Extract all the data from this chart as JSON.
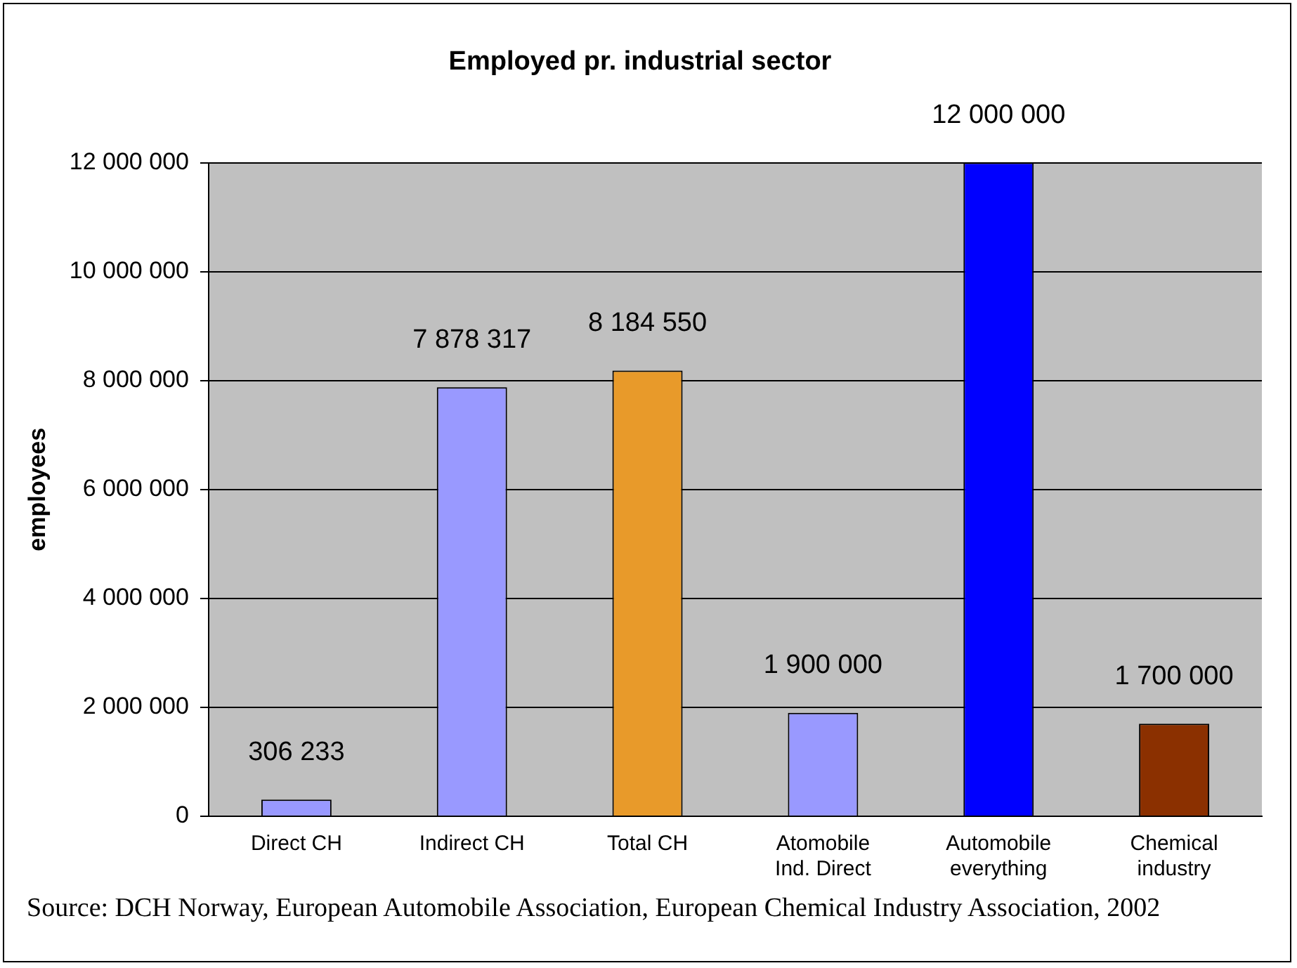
{
  "chart_data": {
    "type": "bar",
    "title": "Employed pr. industrial sector",
    "ylabel": "employees",
    "categories": [
      "Direct CH",
      "Indirect CH",
      "Total CH",
      "Atomobile\nInd. Direct",
      "Automobile\neverything",
      "Chemical\nindustry"
    ],
    "values": [
      306233,
      7878317,
      8184550,
      1900000,
      12000000,
      1700000
    ],
    "colors": [
      "#9999ff",
      "#9999ff",
      "#e89a2a",
      "#9999ff",
      "#0000ff",
      "#8b3000"
    ],
    "value_labels": [
      "306 233",
      "7 878 317",
      "8 184 550",
      "1 900 000",
      "12 000 000",
      "1 700 000"
    ],
    "ylim": [
      0,
      12000000
    ],
    "yticks": [
      {
        "value": 0,
        "label": "0"
      },
      {
        "value": 2000000,
        "label": "2 000 000"
      },
      {
        "value": 4000000,
        "label": "4 000 000"
      },
      {
        "value": 6000000,
        "label": "6 000 000"
      },
      {
        "value": 8000000,
        "label": "8 000 000"
      },
      {
        "value": 10000000,
        "label": "10 000 000"
      },
      {
        "value": 12000000,
        "label": "12 000 000"
      }
    ],
    "grid": "y",
    "legend": false,
    "annotations": [
      "Source: DCH Norway, European Automobile Association, European Chemical Industry Association, 2002"
    ]
  }
}
